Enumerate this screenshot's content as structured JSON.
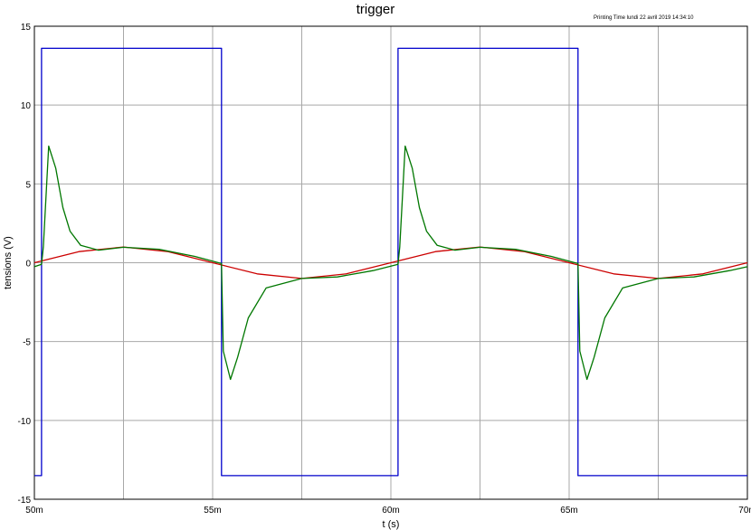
{
  "header": {
    "title": "trigger",
    "print_time": "Printing Time lundi 22 avril 2019  14:34:10"
  },
  "chart_data": {
    "type": "line",
    "title": "trigger",
    "xlabel": "t (s)",
    "ylabel": "tensions (V)",
    "xlim": [
      0.05,
      0.07
    ],
    "ylim": [
      -15,
      15
    ],
    "grid": true,
    "x_ticks": [
      {
        "value": 0.05,
        "label": "50m"
      },
      {
        "value": 0.055,
        "label": "55m"
      },
      {
        "value": 0.06,
        "label": "60m"
      },
      {
        "value": 0.065,
        "label": "65m"
      },
      {
        "value": 0.07,
        "label": "70m"
      }
    ],
    "y_ticks": [
      {
        "value": 15,
        "label": "15"
      },
      {
        "value": 10,
        "label": "10"
      },
      {
        "value": 5,
        "label": "5"
      },
      {
        "value": 0,
        "label": "0"
      },
      {
        "value": -5,
        "label": "-5"
      },
      {
        "value": -10,
        "label": "-10"
      },
      {
        "value": -15,
        "label": "-15"
      }
    ],
    "series": [
      {
        "color": "#0000cc",
        "x": [
          0.05,
          0.0502,
          0.0502,
          0.05525,
          0.05525,
          0.0602,
          0.0602,
          0.06525,
          0.06525,
          0.07
        ],
        "y": [
          -13.5,
          -13.5,
          13.6,
          13.6,
          -13.5,
          -13.5,
          13.6,
          13.6,
          -13.5,
          -13.5
        ]
      },
      {
        "color": "#cc0000",
        "x": [
          0.05,
          0.05125,
          0.0525,
          0.05375,
          0.055,
          0.05625,
          0.0575,
          0.05875,
          0.06,
          0.06125,
          0.0625,
          0.06375,
          0.065,
          0.06625,
          0.0675,
          0.06875,
          0.07
        ],
        "y": [
          0.0,
          0.707,
          1.0,
          0.707,
          0.0,
          -0.707,
          -1.0,
          -0.707,
          0.0,
          0.707,
          1.0,
          0.707,
          0.0,
          -0.707,
          -1.0,
          -0.707,
          0.0
        ]
      },
      {
        "color": "#007700",
        "x": [
          0.05,
          0.0502,
          0.05025,
          0.0504,
          0.0506,
          0.0508,
          0.051,
          0.0513,
          0.0518,
          0.0525,
          0.0535,
          0.0545,
          0.05525,
          0.0553,
          0.0555,
          0.0557,
          0.056,
          0.0565,
          0.0575,
          0.0585,
          0.0595,
          0.0602,
          0.06025,
          0.0604,
          0.0606,
          0.0608,
          0.061,
          0.0613,
          0.0618,
          0.0625,
          0.0635,
          0.0645,
          0.06525,
          0.0653,
          0.0655,
          0.0657,
          0.066,
          0.0665,
          0.0675,
          0.0685,
          0.0695,
          0.07
        ],
        "y": [
          -0.25,
          -0.1,
          1.0,
          7.4,
          6.0,
          3.5,
          2.0,
          1.1,
          0.8,
          0.98,
          0.85,
          0.4,
          -0.05,
          -5.6,
          -7.4,
          -6.0,
          -3.5,
          -1.6,
          -1.0,
          -0.9,
          -0.5,
          -0.1,
          1.0,
          7.4,
          6.0,
          3.5,
          2.0,
          1.1,
          0.8,
          0.98,
          0.85,
          0.4,
          -0.05,
          -5.6,
          -7.4,
          -6.0,
          -3.5,
          -1.6,
          -1.0,
          -0.9,
          -0.5,
          -0.25
        ]
      }
    ]
  }
}
